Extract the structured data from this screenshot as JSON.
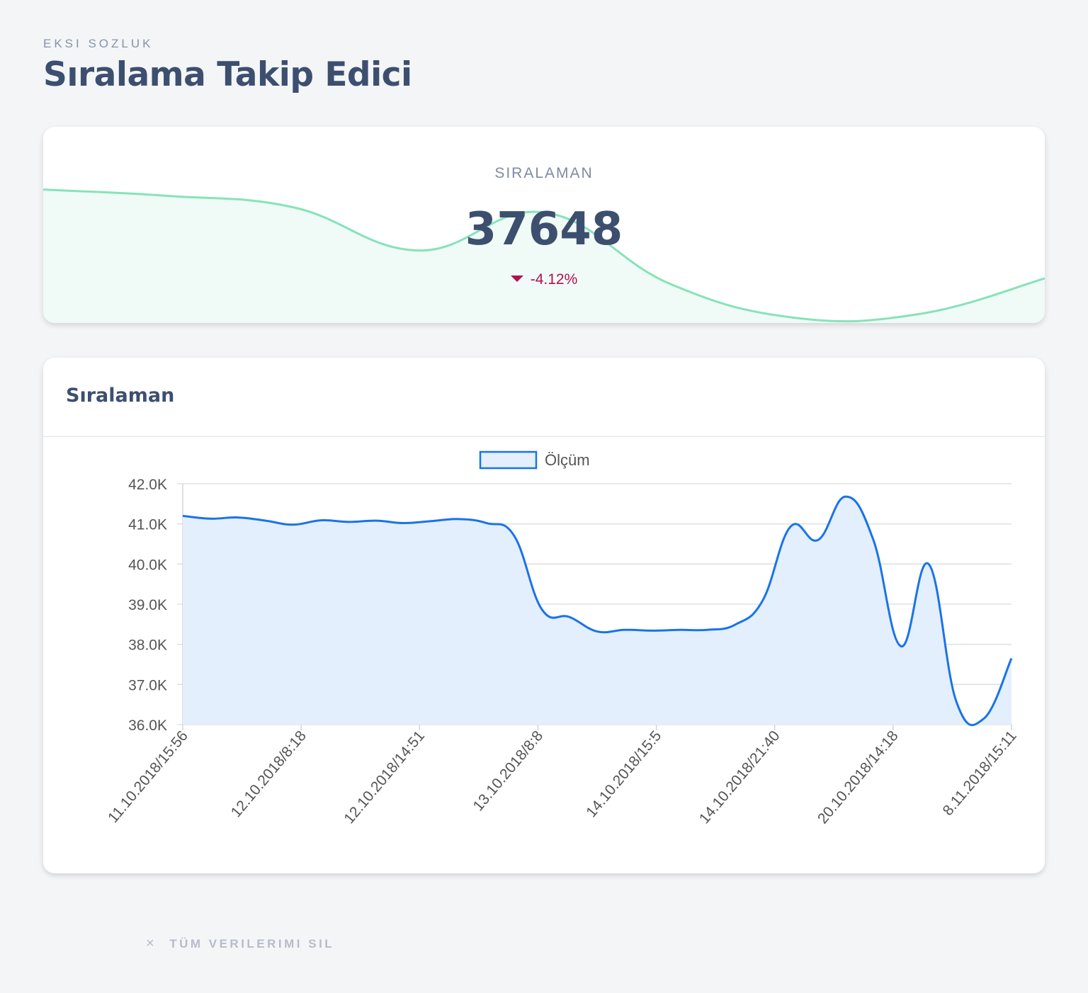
{
  "header": {
    "eyebrow": "EKSI SOZLUK",
    "title": "Sıralama Takip Edici"
  },
  "stat": {
    "label": "SIRALAMAN",
    "value": "37648",
    "delta": "-4.12%",
    "delta_icon": "caret-down-icon",
    "delta_color": "#b0124c",
    "sparkline_color": "#86e3b9",
    "sparkline_values": [
      41.2,
      40.95,
      40.5,
      38.8,
      40.3,
      37.5,
      36.15,
      36.3,
      37.7
    ]
  },
  "chart_card": {
    "title": "Sıralaman"
  },
  "chart_data": {
    "type": "area",
    "legend": [
      "Ölçüm"
    ],
    "legend_position": "top-center",
    "line_color": "#1a73e8",
    "fill_color": "#e3effc",
    "ylim": [
      36000,
      42000
    ],
    "yticks": [
      "36.0K",
      "37.0K",
      "38.0K",
      "39.0K",
      "40.0K",
      "41.0K",
      "42.0K"
    ],
    "xticks": [
      "11.10.2018/15:56",
      "12.10.2018/8:18",
      "12.10.2018/14:51",
      "13.10.2018/8:8",
      "14.10.2018/15:5",
      "14.10.2018/21:40",
      "20.10.2018/14:18",
      "8.11.2018/15:11"
    ],
    "grid": true,
    "series": [
      {
        "name": "Ölçüm",
        "values": [
          41200,
          41130,
          41160,
          41080,
          40980,
          41090,
          41050,
          41080,
          41020,
          41070,
          41120,
          41020,
          40700,
          38870,
          38680,
          38320,
          38360,
          38340,
          38360,
          38360,
          38490,
          39100,
          40930,
          40600,
          41680,
          40600,
          37950,
          40000,
          36580,
          36150,
          37650
        ]
      }
    ]
  },
  "footer": {
    "delete_label": "TÜM VERILERIMI SIL",
    "delete_icon": "close-icon"
  }
}
